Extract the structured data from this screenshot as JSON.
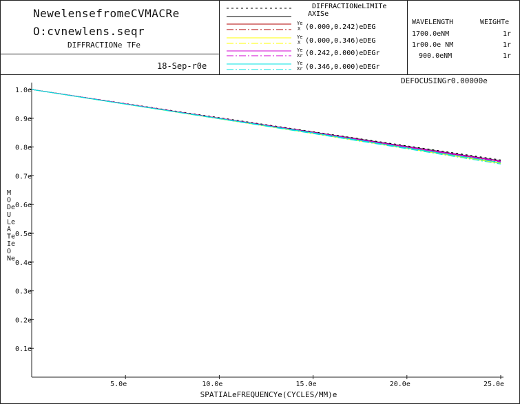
{
  "header": {
    "title_line1": "NewelensefromeCVMACRe",
    "title_line2": "O:cvnewlens.seqr",
    "subtitle": "DIFFRACTIONe TFe",
    "date": "18-Sep-r0e"
  },
  "legend": {
    "items": [
      {
        "label": "DIFFRACTIONeLIMITe",
        "style": "dotted",
        "color": "#000000"
      },
      {
        "label": "AXISe",
        "style": "solid",
        "color": "#000000"
      },
      {
        "label": "(0.000,0.242)eDEG",
        "sublabel_top": "Ye",
        "sublabel_bottom": "X",
        "style_top": "solid",
        "style_bottom": "dashdot",
        "color": "#b00000"
      },
      {
        "label": "(0.000,0.346)eDEG",
        "sublabel_top": "Ye",
        "sublabel_bottom": "X",
        "style_top": "solid",
        "style_bottom": "dashdot",
        "color": "#ffff00"
      },
      {
        "label": "(0.242,0.000)eDEGr",
        "sublabel_top": "Ye",
        "sublabel_bottom": "Xr",
        "style_top": "solid",
        "style_bottom": "dashdot",
        "color": "#d000d0"
      },
      {
        "label": "(0.346,0.000)eDEGr",
        "sublabel_top": "Ye",
        "sublabel_bottom": "Xr",
        "style_top": "solid",
        "style_bottom": "dashdot",
        "color": "#00e0e0"
      }
    ]
  },
  "wavelengths": {
    "head_wavelength": "WAVELENGTH",
    "head_weight": "WEIGHTe",
    "rows": [
      {
        "wavelength": "1700.0eNM",
        "weight": "1r"
      },
      {
        "wavelength": "1r00.0e NM",
        "weight": "1r"
      },
      {
        "wavelength": "900.0eNM",
        "weight": "1r"
      }
    ]
  },
  "defocusing": "DEFOCUSINGr0.00000e",
  "chart_data": {
    "type": "line",
    "title": "DIFFRACTIONe TFe",
    "xlabel": "SPATIALeFREQUENCYe(CYCLES/MM)e",
    "ylabel": "MODeULeATeIeONe",
    "xlim": [
      0,
      25
    ],
    "ylim": [
      0,
      1
    ],
    "x_tick_labels": [
      "5.0e",
      "10.0e",
      "15.0e",
      "20.0e",
      "25.0e"
    ],
    "x_ticks": [
      5,
      10,
      15,
      20,
      25
    ],
    "y_tick_labels": [
      "0.1e",
      "0.2e",
      "0.3e",
      "0.4e",
      "0.5e",
      "0.6e",
      "0.7e",
      "0.8e",
      "0.9e",
      "1.0e"
    ],
    "y_ticks": [
      0.1,
      0.2,
      0.3,
      0.4,
      0.5,
      0.6,
      0.7,
      0.8,
      0.9,
      1.0
    ],
    "x": [
      0,
      5,
      10,
      15,
      20,
      25
    ],
    "series": [
      {
        "style": "dotted",
        "color": "#000000",
        "values": [
          1.0,
          0.951,
          0.902,
          0.853,
          0.804,
          0.755
        ]
      },
      {
        "style": "solid",
        "color": "#000000",
        "values": [
          1.0,
          0.95,
          0.9,
          0.852,
          0.802,
          0.752
        ]
      },
      {
        "style": "solid",
        "color": "#b00000",
        "values": [
          1.0,
          0.95,
          0.9,
          0.851,
          0.8,
          0.75
        ]
      },
      {
        "style": "dashdot",
        "color": "#b00000",
        "values": [
          1.0,
          0.95,
          0.899,
          0.849,
          0.798,
          0.748
        ]
      },
      {
        "style": "solid",
        "color": "#ffff00",
        "values": [
          1.0,
          0.949,
          0.898,
          0.847,
          0.795,
          0.743
        ]
      },
      {
        "style": "dashdot",
        "color": "#ffff00",
        "values": [
          1.0,
          0.949,
          0.898,
          0.848,
          0.796,
          0.745
        ]
      },
      {
        "style": "solid",
        "color": "#d000d0",
        "values": [
          1.0,
          0.95,
          0.9,
          0.851,
          0.801,
          0.751
        ]
      },
      {
        "style": "dashdot",
        "color": "#d000d0",
        "values": [
          1.0,
          0.95,
          0.899,
          0.85,
          0.799,
          0.749
        ]
      },
      {
        "style": "solid",
        "color": "#00e0e0",
        "values": [
          1.0,
          0.949,
          0.899,
          0.849,
          0.797,
          0.746
        ]
      },
      {
        "style": "dashdot",
        "color": "#00e0e0",
        "values": [
          1.0,
          0.949,
          0.898,
          0.847,
          0.794,
          0.741
        ]
      }
    ]
  }
}
